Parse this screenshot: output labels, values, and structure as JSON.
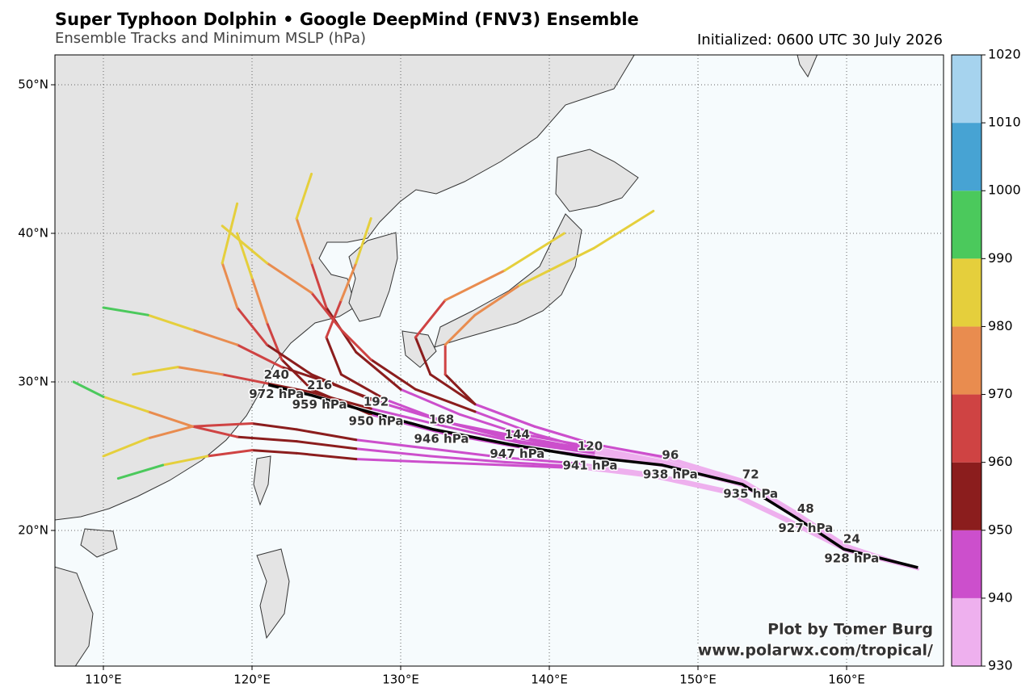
{
  "header": {
    "title": "Super Typhoon Dolphin • Google DeepMind (FNV3) Ensemble",
    "subtitle": "Ensemble Tracks and Minimum MSLP (hPa)",
    "initialized": "Initialized: 0600 UTC 30 July 2026"
  },
  "credits": {
    "author": "Plot by Tomer Burg",
    "url": "www.polarwx.com/tropical/"
  },
  "map": {
    "lonlim": [
      106.74,
      166.52
    ],
    "latlim": [
      10.87,
      52.01
    ],
    "lonticks": [
      {
        "value": 110,
        "label": "110°E"
      },
      {
        "value": 120,
        "label": "120°E"
      },
      {
        "value": 130,
        "label": "130°E"
      },
      {
        "value": 140,
        "label": "140°E"
      },
      {
        "value": 150,
        "label": "150°E"
      },
      {
        "value": 160,
        "label": "160°E"
      }
    ],
    "latticks": [
      {
        "value": 20,
        "label": "20°N"
      },
      {
        "value": 30,
        "label": "30°N"
      },
      {
        "value": 40,
        "label": "40°N"
      },
      {
        "value": 50,
        "label": "50°N"
      }
    ],
    "grid": true
  },
  "colorbar": {
    "levels": [
      930,
      940,
      950,
      960,
      970,
      980,
      990,
      1000,
      1010,
      1020
    ],
    "colors": [
      "#eeb0ee",
      "#cc4fcc",
      "#8b1d1d",
      "#cf4343",
      "#e98c4f",
      "#e5cf3c",
      "#4bc95c",
      "#47a3d3",
      "#a6d3ee"
    ]
  },
  "mean_track": {
    "color": "#000000",
    "lon": [
      164.8,
      159.8,
      156.7,
      153.0,
      147.6,
      142.2,
      137.3,
      132.2,
      127.8,
      124.0,
      121.1
    ],
    "lat": [
      17.5,
      18.75,
      20.8,
      23.1,
      24.4,
      25.0,
      25.8,
      26.8,
      28.0,
      29.1,
      29.8
    ],
    "hours": [
      null,
      24,
      48,
      72,
      96,
      120,
      144,
      168,
      192,
      216,
      240
    ],
    "mslp": [
      null,
      928,
      927,
      935,
      938,
      941,
      947,
      946,
      950,
      959,
      972
    ],
    "value_labels": [
      null,
      "928 hPa",
      "927 hPa",
      "935 hPa",
      "938 hPa",
      "941 hPa",
      "947 hPa",
      "946 hPa",
      "950 hPa",
      "959 hPa",
      "972 hPa"
    ]
  },
  "tracks": [
    {
      "lon": [
        164.8,
        160,
        156.5,
        153,
        148,
        143,
        138,
        133,
        128,
        124,
        121,
        118,
        115,
        112
      ],
      "lat": [
        17.4,
        18.9,
        21,
        23,
        24.4,
        25.2,
        25.9,
        27,
        28.2,
        29.3,
        29.9,
        30.5,
        31,
        30.5
      ],
      "mslp": [
        934,
        932,
        935,
        936,
        938,
        941,
        945,
        948,
        952,
        958,
        966,
        976,
        986,
        994
      ]
    },
    {
      "lon": [
        164.8,
        160,
        156.5,
        153,
        148,
        143,
        138,
        134,
        130,
        127,
        125,
        124,
        123,
        124
      ],
      "lat": [
        17.4,
        19,
        21.2,
        23.2,
        24.6,
        25.6,
        26.5,
        27.8,
        29.5,
        32,
        35,
        38,
        41,
        44
      ],
      "mslp": [
        934,
        932,
        934,
        936,
        938,
        942,
        945,
        948,
        952,
        958,
        966,
        975,
        985,
        992
      ]
    },
    {
      "lon": [
        164.8,
        160,
        156,
        152,
        147,
        142,
        137,
        132,
        127,
        123,
        120,
        117,
        114,
        111
      ],
      "lat": [
        17.4,
        18.6,
        20.6,
        22.5,
        23.6,
        24.2,
        24.4,
        24.6,
        24.8,
        25.2,
        25.4,
        25,
        24.4,
        23.5
      ],
      "mslp": [
        934,
        931,
        933,
        935,
        937,
        940,
        944,
        946,
        950,
        956,
        968,
        980,
        990,
        996
      ]
    },
    {
      "lon": [
        164.8,
        160,
        156.5,
        153,
        148,
        143,
        139,
        135,
        132,
        131,
        133,
        137,
        141
      ],
      "lat": [
        17.4,
        19,
        21.2,
        23.3,
        24.8,
        25.8,
        27,
        28.5,
        30.5,
        33,
        35.5,
        37.5,
        40
      ],
      "mslp": [
        934,
        932,
        934,
        936,
        939,
        942,
        946,
        950,
        956,
        964,
        974,
        982,
        986
      ]
    },
    {
      "lon": [
        164.8,
        160,
        156.5,
        153,
        148,
        143,
        138,
        133,
        128,
        124,
        122,
        121,
        120,
        119
      ],
      "lat": [
        17.4,
        18.9,
        21,
        23,
        24.3,
        25,
        25.6,
        26.5,
        27.8,
        29.5,
        31.5,
        34,
        37,
        40
      ],
      "mslp": [
        934,
        932,
        934,
        936,
        938,
        941,
        944,
        946,
        950,
        956,
        962,
        972,
        982,
        990
      ]
    },
    {
      "lon": [
        164.8,
        160,
        156.5,
        153,
        148,
        143,
        138,
        133,
        129,
        126,
        125,
        126,
        127,
        128
      ],
      "lat": [
        17.4,
        18.8,
        21,
        23.1,
        24.5,
        25.3,
        26.2,
        27.3,
        28.8,
        30.5,
        33,
        35.5,
        38,
        41
      ],
      "mslp": [
        934,
        932,
        933,
        936,
        938,
        942,
        946,
        949,
        953,
        957,
        963,
        972,
        981,
        988
      ]
    },
    {
      "lon": [
        164.8,
        160,
        156,
        152,
        147,
        142,
        137,
        132,
        127,
        123,
        120,
        116,
        113,
        110
      ],
      "lat": [
        17.4,
        18.7,
        20.8,
        22.7,
        23.8,
        24.5,
        24.9,
        25.5,
        26.1,
        26.8,
        27.2,
        27,
        26.2,
        25
      ],
      "mslp": [
        934,
        931,
        933,
        935,
        937,
        941,
        944,
        947,
        951,
        955,
        962,
        978,
        988,
        995
      ]
    },
    {
      "lon": [
        164.8,
        160,
        156.5,
        153,
        148,
        143,
        138,
        133,
        129,
        125,
        122,
        119,
        116,
        113,
        110
      ],
      "lat": [
        17.4,
        18.9,
        21.1,
        23.2,
        24.6,
        25.4,
        26.3,
        27.3,
        28.5,
        30,
        31,
        32.5,
        33.5,
        34.5,
        35
      ],
      "mslp": [
        934,
        932,
        934,
        936,
        938,
        941,
        945,
        947,
        951,
        956,
        965,
        975,
        984,
        990,
        994
      ]
    },
    {
      "lon": [
        164.8,
        160,
        156.5,
        153,
        148,
        143,
        139,
        135,
        133,
        133,
        135,
        138,
        143,
        147
      ],
      "lat": [
        17.4,
        19,
        21.3,
        23.4,
        24.9,
        25.8,
        27,
        28.5,
        30.5,
        32.5,
        34.5,
        36.5,
        39,
        41.5
      ],
      "mslp": [
        934,
        932,
        934,
        937,
        940,
        944,
        948,
        954,
        962,
        970,
        978,
        983,
        985,
        986
      ]
    },
    {
      "lon": [
        164.8,
        160,
        156.5,
        153,
        148,
        143,
        138,
        133,
        128,
        124,
        121,
        119,
        118,
        119
      ],
      "lat": [
        17.4,
        18.9,
        21,
        23.1,
        24.5,
        25.3,
        26,
        27.3,
        28.8,
        30.5,
        32.5,
        35,
        38,
        42
      ],
      "mslp": [
        934,
        932,
        934,
        936,
        938,
        942,
        945,
        948,
        952,
        957,
        964,
        975,
        984,
        991
      ]
    },
    {
      "lon": [
        164.8,
        160,
        156,
        152,
        147,
        142,
        137,
        132,
        127,
        123,
        119,
        116,
        113,
        110,
        108
      ],
      "lat": [
        17.4,
        18.7,
        20.7,
        22.6,
        23.7,
        24.3,
        24.6,
        25,
        25.5,
        26,
        26.3,
        27,
        28,
        29,
        30
      ],
      "mslp": [
        934,
        931,
        933,
        935,
        937,
        940,
        943,
        946,
        950,
        955,
        966,
        979,
        988,
        993,
        996
      ]
    },
    {
      "lon": [
        164.8,
        160,
        156.5,
        153,
        148,
        143,
        139,
        135,
        131,
        128,
        126,
        124,
        121,
        118
      ],
      "lat": [
        17.4,
        19,
        21.2,
        23.2,
        24.6,
        25.4,
        26.5,
        28,
        29.5,
        31.5,
        33.5,
        36,
        38,
        40.5
      ],
      "mslp": [
        934,
        932,
        934,
        936,
        939,
        943,
        947,
        951,
        955,
        961,
        969,
        978,
        986,
        992
      ]
    }
  ]
}
